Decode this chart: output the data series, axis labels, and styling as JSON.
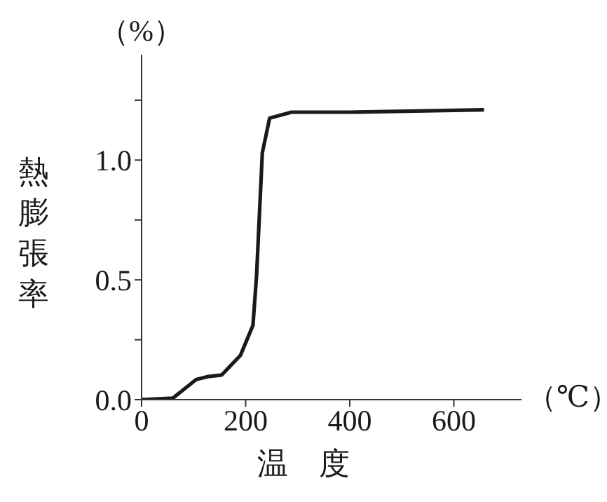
{
  "chart_data": {
    "type": "line",
    "xlabel": "温　度",
    "ylabel": "熱膨張率",
    "annotations": [
      "（%）",
      "（℃）"
    ],
    "x": [
      0,
      60,
      105,
      127,
      154,
      190,
      214,
      221,
      232,
      246,
      288,
      400,
      658
    ],
    "series": [
      {
        "color": "#1a1a1a",
        "values": [
          0,
          0.006,
          0.084,
          0.096,
          0.103,
          0.185,
          0.31,
          0.52,
          1.03,
          1.175,
          1.2,
          1.2,
          1.21
        ]
      }
    ],
    "xlim": [
      0,
      730
    ],
    "xticks": [
      0,
      200,
      400,
      600
    ],
    "ylim": [
      0,
      1.44
    ],
    "yticks": [
      {
        "value": 0,
        "label": "0.0"
      },
      {
        "value": 0.25,
        "label": null
      },
      {
        "value": 0.5,
        "label": "0.5"
      },
      {
        "value": 0.75,
        "label": null
      },
      {
        "value": 1,
        "label": "1.0"
      },
      {
        "value": 1.25,
        "label": null
      }
    ]
  }
}
